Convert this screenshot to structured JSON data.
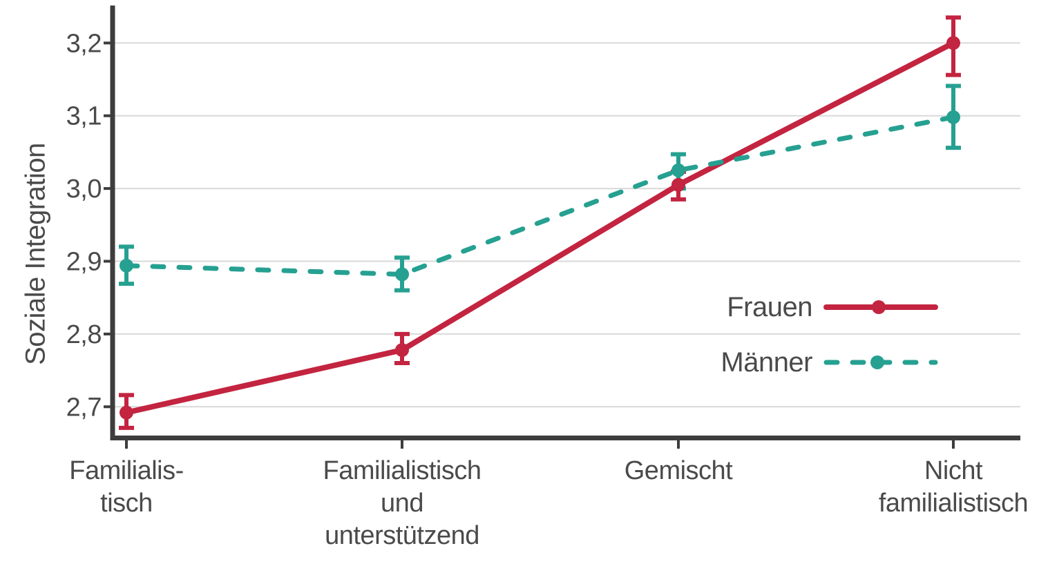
{
  "chart_data": {
    "type": "line",
    "title": "",
    "xlabel": "",
    "ylabel": "Soziale Integration",
    "categories": [
      "Familialis-\ntisch",
      "Familialistisch\nund\nunterstützend",
      "Gemischt",
      "Nicht\nfamilialistisch"
    ],
    "y_ticks": [
      2.7,
      2.8,
      2.9,
      3.0,
      3.1,
      3.2
    ],
    "y_tick_labels": [
      "2,7",
      "2,8",
      "2,9",
      "3,0",
      "3,1",
      "3,2"
    ],
    "ylim": [
      2.66,
      3.26
    ],
    "grid": "horizontal",
    "legend_position": "inside-right",
    "error_bars": "95%-CI",
    "series": [
      {
        "name": "Frauen",
        "style": "solid",
        "color": "#c32440",
        "values": [
          2.692,
          2.778,
          3.005,
          3.2
        ],
        "ci_low": [
          2.671,
          2.76,
          2.985,
          3.156
        ],
        "ci_high": [
          2.716,
          2.8,
          3.023,
          3.235
        ]
      },
      {
        "name": "Männer",
        "style": "dashed",
        "color": "#26a091",
        "values": [
          2.894,
          2.882,
          3.025,
          3.098
        ],
        "ci_low": [
          2.869,
          2.86,
          3.0,
          3.056
        ],
        "ci_high": [
          2.92,
          2.905,
          3.047,
          3.141
        ]
      }
    ],
    "colors": {
      "axis": "#3d3d3d",
      "grid": "#d9d9d9",
      "text": "#4a4a4a",
      "background": "#ffffff"
    }
  }
}
